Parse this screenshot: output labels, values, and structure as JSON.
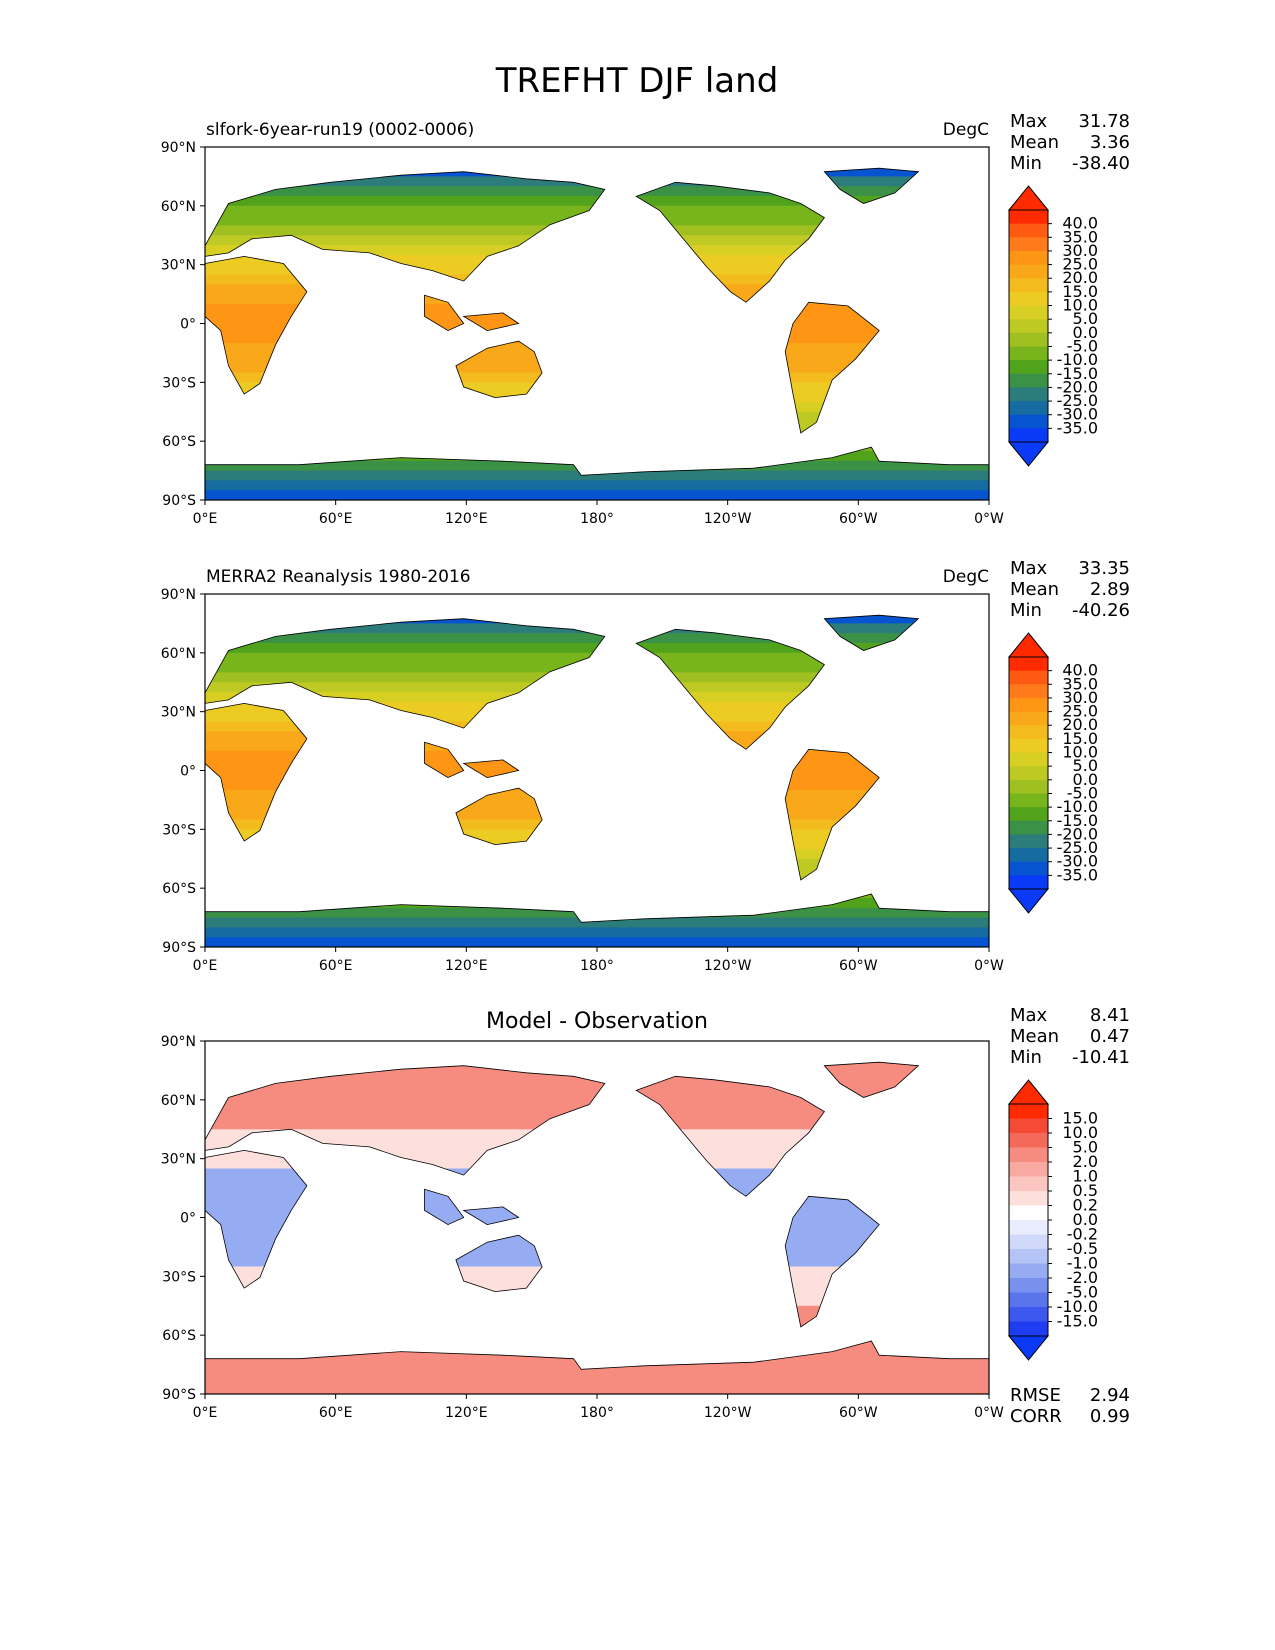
{
  "figure_title": "TREFHT DJF land",
  "panels": [
    {
      "left_title": "slfork-6year-run19 (0002-0006)",
      "units": "DegC",
      "center_title": "",
      "stats": {
        "max_label": "Max",
        "max": "31.78",
        "mean_label": "Mean",
        "mean": "3.36",
        "min_label": "Min",
        "min": "-38.40"
      },
      "colorbar": {
        "ticks": [
          "40.0",
          "35.0",
          "30.0",
          "25.0",
          "20.0",
          "15.0",
          "10.0",
          "5.0",
          "0.0",
          "-5.0",
          "-10.0",
          "-15.0",
          "-20.0",
          "-25.0",
          "-30.0",
          "-35.0"
        ],
        "colors": [
          "#ff2a00",
          "#ff5a12",
          "#ff7a1a",
          "#ff9514",
          "#f8a818",
          "#f4bb1e",
          "#eccb23",
          "#d8cf25",
          "#bfc923",
          "#9fc020",
          "#78b41c",
          "#52a31c",
          "#3b9146",
          "#2b7c7a",
          "#166ca0",
          "#0654cf",
          "#0a3af5"
        ],
        "top_arrow": "#ff2a00",
        "bottom_arrow": "#0a3af5"
      },
      "lat_ticks": [
        "90°N",
        "60°N",
        "30°N",
        "0°",
        "30°S",
        "60°S",
        "90°S"
      ],
      "lon_ticks": [
        "0°E",
        "60°E",
        "120°E",
        "180°",
        "120°W",
        "60°W",
        "0°W"
      ]
    },
    {
      "left_title": "MERRA2 Reanalysis 1980-2016",
      "units": "DegC",
      "center_title": "",
      "stats": {
        "max_label": "Max",
        "max": "33.35",
        "mean_label": "Mean",
        "mean": "2.89",
        "min_label": "Min",
        "min": "-40.26"
      },
      "colorbar": {
        "ticks": [
          "40.0",
          "35.0",
          "30.0",
          "25.0",
          "20.0",
          "15.0",
          "10.0",
          "5.0",
          "0.0",
          "-5.0",
          "-10.0",
          "-15.0",
          "-20.0",
          "-25.0",
          "-30.0",
          "-35.0"
        ],
        "colors": [
          "#ff2a00",
          "#ff5a12",
          "#ff7a1a",
          "#ff9514",
          "#f8a818",
          "#f4bb1e",
          "#eccb23",
          "#d8cf25",
          "#bfc923",
          "#9fc020",
          "#78b41c",
          "#52a31c",
          "#3b9146",
          "#2b7c7a",
          "#166ca0",
          "#0654cf",
          "#0a3af5"
        ],
        "top_arrow": "#ff2a00",
        "bottom_arrow": "#0a3af5"
      },
      "lat_ticks": [
        "90°N",
        "60°N",
        "30°N",
        "0°",
        "30°S",
        "60°S",
        "90°S"
      ],
      "lon_ticks": [
        "0°E",
        "60°E",
        "120°E",
        "180°",
        "120°W",
        "60°W",
        "0°W"
      ]
    },
    {
      "left_title": "",
      "units": "",
      "center_title": "Model - Observation",
      "stats": {
        "max_label": "Max",
        "max": "8.41",
        "mean_label": "Mean",
        "mean": "0.47",
        "min_label": "Min",
        "min": "-10.41"
      },
      "colorbar": {
        "ticks": [
          "15.0",
          "10.0",
          "5.0",
          "2.0",
          "1.0",
          "0.5",
          "0.2",
          "0.0",
          "-0.2",
          "-0.5",
          "-1.0",
          "-2.0",
          "-5.0",
          "-10.0",
          "-15.0"
        ],
        "colors": [
          "#ff2a00",
          "#f54a36",
          "#f46a5a",
          "#f68c80",
          "#f8aaa2",
          "#fbc6c0",
          "#fde0dc",
          "#ffffff",
          "#e8ecfc",
          "#d0d9fa",
          "#b4c4f6",
          "#96acf2",
          "#7890ee",
          "#5a74ec",
          "#3c58ee",
          "#1e3cf0"
        ],
        "top_arrow": "#ff2a00",
        "bottom_arrow": "#0a3af5"
      },
      "lat_ticks": [
        "90°N",
        "60°N",
        "30°N",
        "0°",
        "30°S",
        "60°S",
        "90°S"
      ],
      "lon_ticks": [
        "0°E",
        "60°E",
        "120°E",
        "180°",
        "120°W",
        "60°W",
        "0°W"
      ],
      "extra_stats": {
        "rmse_label": "RMSE",
        "rmse": "2.94",
        "corr_label": "CORR",
        "corr": "0.99"
      }
    }
  ]
}
